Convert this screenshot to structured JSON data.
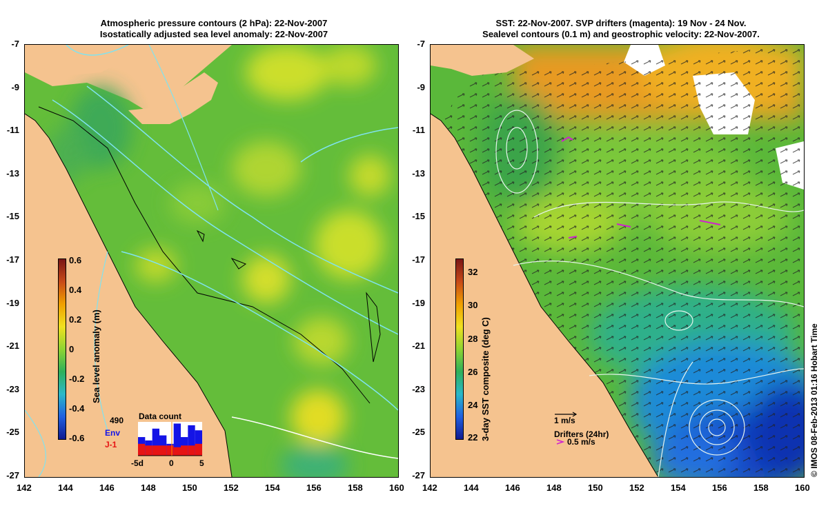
{
  "left_panel": {
    "title_line1": "Atmospheric pressure contours (2 hPa): 22-Nov-2007",
    "title_line2": "Isostatically adjusted sea level anomaly: 22-Nov-2007",
    "colorbar_label": "Sea level anomaly (m)",
    "colorbar_ticks": [
      "0.6",
      "0.4",
      "0.2",
      "0",
      "-0.2",
      "-0.4",
      "-0.6"
    ],
    "data_count": {
      "total": "490",
      "title": "Data count",
      "series": [
        "Env",
        "J-1"
      ],
      "axis_labels": [
        "-5d",
        "0",
        "5"
      ],
      "env_values": [
        0.55,
        0.45,
        0.8,
        0.6,
        0.35,
        0.95,
        0.55,
        0.9,
        0.75
      ],
      "j1_values": [
        0.35,
        0.3,
        0.3,
        0.3,
        0.3,
        0.25,
        0.3,
        0.3,
        0.35
      ]
    }
  },
  "right_panel": {
    "title_line1": "SST: 22-Nov-2007. SVP drifters (magenta): 19 Nov - 24 Nov.",
    "title_line2": "Sealevel contours (0.1 m) and geostrophic velocity: 22-Nov-2007.",
    "colorbar_label": "3-day SST composite (deg C)",
    "colorbar_ticks": [
      "32",
      "30",
      "28",
      "26",
      "24",
      "22"
    ],
    "velocity_scale": "1 m/s",
    "drifters_label": "Drifters (24hr)",
    "drifter_scale": "0.5 m/s"
  },
  "axes": {
    "lat_ticks": [
      "-7",
      "-9",
      "-11",
      "-13",
      "-15",
      "-17",
      "-19",
      "-21",
      "-23",
      "-25",
      "-27"
    ],
    "lon_ticks": [
      "142",
      "144",
      "146",
      "148",
      "150",
      "152",
      "154",
      "156",
      "158",
      "160"
    ]
  },
  "copyright": "© IMOS 08-Feb-2013 01:16 Hobart Time",
  "colors": {
    "land": "#f5c38f",
    "sea_green": "#6cc23a",
    "env_bar": "#1414e6",
    "j1_bar": "#e61414",
    "contour_cyan": "#7fe3f0"
  }
}
